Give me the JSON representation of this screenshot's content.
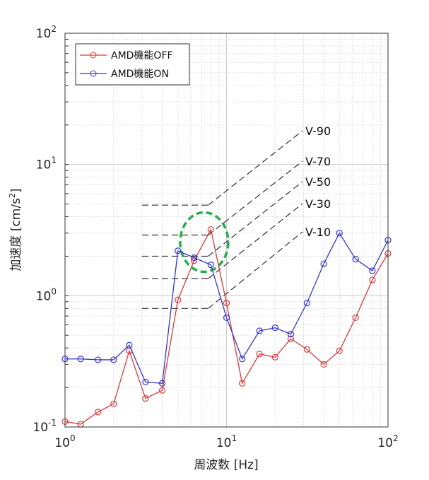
{
  "chart_data": {
    "type": "line",
    "xscale": "log",
    "yscale": "log",
    "xlim": [
      1,
      100
    ],
    "ylim": [
      0.1,
      100
    ],
    "grid": true,
    "xlabel": "周波数 [Hz]",
    "ylabel": "加速度 [cm/s²]",
    "ylabel_main": "加速度 [cm/s",
    "ylabel_sup": "2",
    "ylabel_end": "]",
    "x_ticks": [
      {
        "base": "10",
        "exp": "0"
      },
      {
        "base": "10",
        "exp": "1"
      },
      {
        "base": "10",
        "exp": "2"
      }
    ],
    "y_ticks": [
      {
        "base": "10",
        "exp": "-1"
      },
      {
        "base": "10",
        "exp": "0"
      },
      {
        "base": "10",
        "exp": "1"
      },
      {
        "base": "10",
        "exp": "2"
      }
    ],
    "legend_position": "top-left",
    "x": [
      1,
      1.25,
      1.6,
      2,
      2.5,
      3.15,
      4,
      5,
      6.3,
      8,
      10,
      12.5,
      16,
      20,
      25,
      31.5,
      40,
      50,
      63,
      80,
      100
    ],
    "series": [
      {
        "name": "AMD機能OFF",
        "color": "#d9393b",
        "values": [
          0.11,
          0.105,
          0.13,
          0.15,
          0.38,
          0.165,
          0.19,
          0.93,
          1.85,
          3.2,
          0.88,
          0.215,
          0.36,
          0.34,
          0.47,
          0.39,
          0.3,
          0.38,
          0.68,
          1.32,
          2.1
        ]
      },
      {
        "name": "AMD機能ON",
        "color": "#3535c8",
        "values": [
          0.33,
          0.33,
          0.325,
          0.325,
          0.42,
          0.22,
          0.215,
          2.2,
          1.95,
          1.72,
          0.68,
          0.33,
          0.54,
          0.57,
          0.51,
          0.88,
          1.75,
          3.0,
          1.9,
          1.55,
          2.65
        ]
      }
    ],
    "annotations": {
      "reference_lines": [
        {
          "label": "V-90",
          "level": 4.9
        },
        {
          "label": "V-70",
          "level": 2.9
        },
        {
          "label": "V-50",
          "level": 2.0
        },
        {
          "label": "V-30",
          "level": 1.35
        },
        {
          "label": "V-10",
          "level": 0.8
        }
      ],
      "reference_x_range": [
        3,
        7.7
      ],
      "highlight_color": "#22b04b",
      "highlight_center": [
        7.2,
        2.0
      ]
    }
  }
}
